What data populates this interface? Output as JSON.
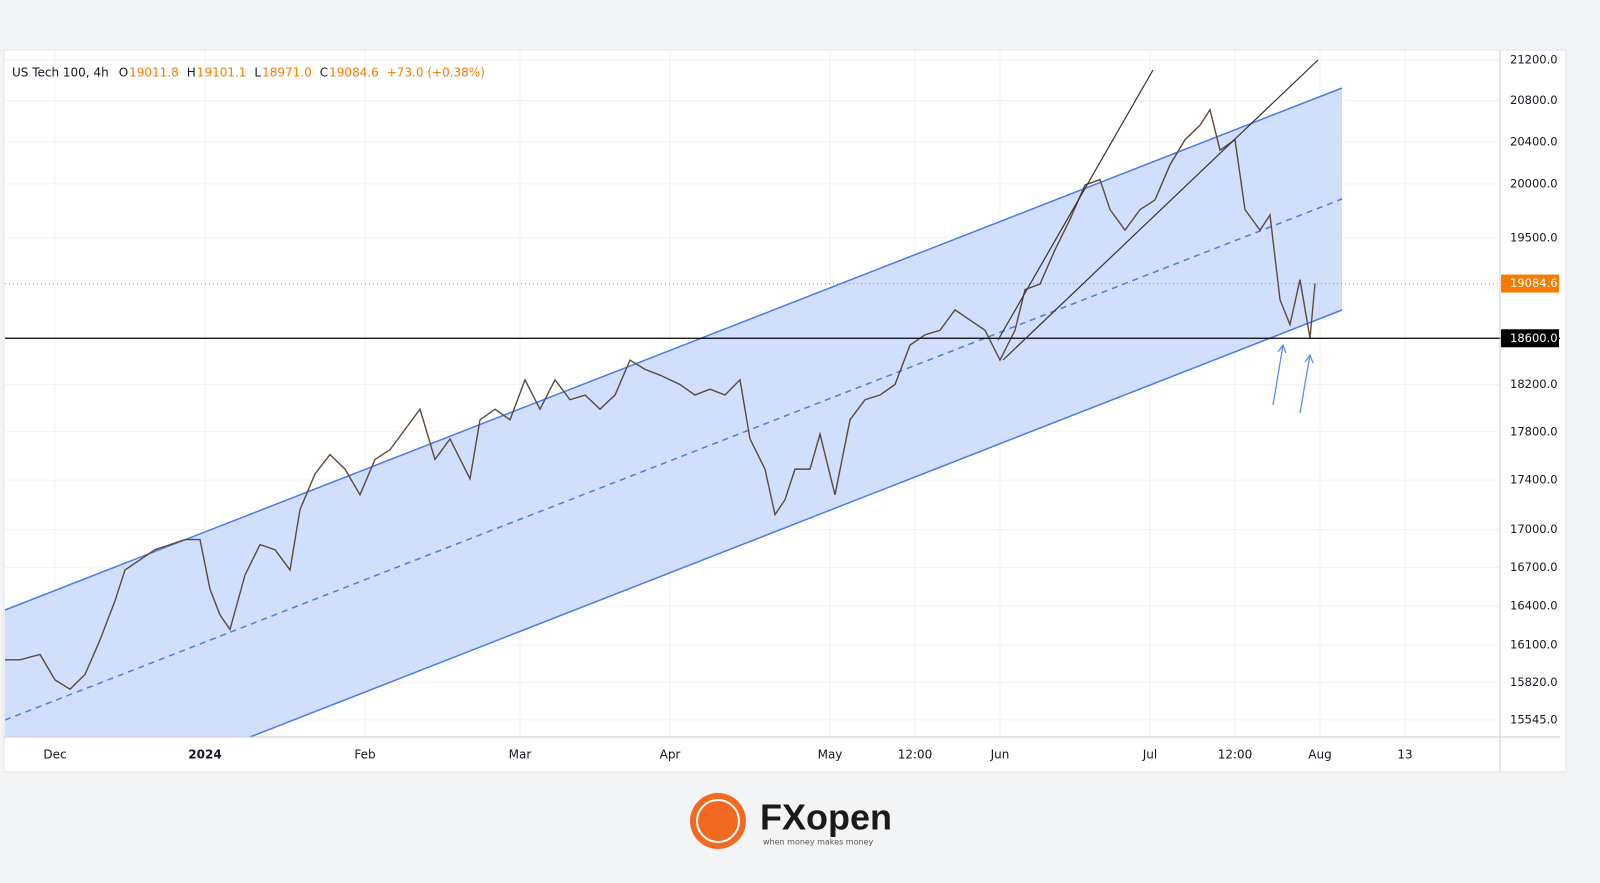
{
  "chart_data": {
    "type": "line",
    "title": "US Tech 100, 4h",
    "ohlc": [
      {
        "key": "O",
        "text": "19011.8"
      },
      {
        "key": "H",
        "text": "19101.1"
      },
      {
        "key": "L",
        "text": "18971.0"
      },
      {
        "key": "C",
        "text": "19084.6"
      }
    ],
    "change": "+73.0 (+0.38%)",
    "log_scale": true,
    "x": [
      0,
      3,
      7,
      10,
      13,
      16,
      19,
      22,
      24,
      27,
      30,
      33,
      36,
      39,
      41,
      43,
      45,
      48,
      51,
      54,
      57,
      59,
      62,
      65,
      68,
      71,
      74,
      77,
      80,
      83,
      86,
      89,
      93,
      95,
      98,
      101,
      104,
      107,
      110,
      113,
      116,
      119,
      122,
      125,
      128,
      131,
      135,
      138,
      141,
      144,
      147,
      149,
      152,
      154,
      156,
      158,
      161,
      163,
      166,
      169,
      172,
      175,
      178,
      181,
      184,
      187,
      190,
      193,
      196,
      199,
      202,
      204,
      207,
      210,
      213,
      216,
      219,
      221,
      224,
      227,
      230,
      233,
      236,
      239,
      241,
      243,
      246,
      248,
      251,
      253,
      255,
      257,
      259,
      261,
      262
    ],
    "series": [
      {
        "name": "US Tech 100",
        "color": "#5d4a3a",
        "values": [
          15990,
          15990,
          16030,
          15840,
          15770,
          15880,
          16140,
          16440,
          16680,
          16760,
          16840,
          16880,
          16920,
          16920,
          16530,
          16330,
          16220,
          16640,
          16880,
          16840,
          16680,
          17160,
          17450,
          17610,
          17490,
          17280,
          17570,
          17650,
          17820,
          17990,
          17570,
          17740,
          17410,
          17900,
          17990,
          17900,
          18240,
          17990,
          18240,
          18070,
          18110,
          17990,
          18110,
          18410,
          18330,
          18280,
          18200,
          18110,
          18160,
          18110,
          18240,
          17740,
          17490,
          17120,
          17240,
          17490,
          17490,
          17780,
          17280,
          17900,
          18070,
          18110,
          18200,
          18540,
          18630,
          18670,
          18850,
          18760,
          18670,
          18410,
          18670,
          19030,
          19080,
          19390,
          19670,
          19990,
          20040,
          19760,
          19570,
          19760,
          19850,
          20180,
          20420,
          20560,
          20710,
          20320,
          20420,
          19760,
          19570,
          19710,
          18940,
          18720,
          19120,
          18600,
          19085
        ]
      }
    ],
    "xlim": [
      0,
      299
    ],
    "xticks": [
      {
        "value": 10,
        "label": "Dec"
      },
      {
        "value": 40,
        "label": "2024"
      },
      {
        "value": 72,
        "label": "Feb"
      },
      {
        "value": 103,
        "label": "Mar"
      },
      {
        "value": 133,
        "label": "Apr"
      },
      {
        "value": 165,
        "label": "May"
      },
      {
        "value": 182,
        "label": "12:00"
      },
      {
        "value": 199,
        "label": "Jun"
      },
      {
        "value": 229,
        "label": "Jul"
      },
      {
        "value": 246,
        "label": "12:00"
      },
      {
        "value": 263,
        "label": "Aug"
      },
      {
        "value": 280,
        "label": "13"
      }
    ],
    "ylim": [
      15420,
      21280
    ],
    "yticks": [
      {
        "value": 21200,
        "label": "21200.0"
      },
      {
        "value": 20800,
        "label": "20800.0"
      },
      {
        "value": 20400,
        "label": "20400.0"
      },
      {
        "value": 20000,
        "label": "20000.0"
      },
      {
        "value": 19500,
        "label": "19500.0"
      },
      {
        "value": 18200,
        "label": "18200.0"
      },
      {
        "value": 17800,
        "label": "17800.0"
      },
      {
        "value": 17400,
        "label": "17400.0"
      },
      {
        "value": 17000,
        "label": "17000.0"
      },
      {
        "value": 16700,
        "label": "16700.0"
      },
      {
        "value": 16400,
        "label": "16400.0"
      },
      {
        "value": 16100,
        "label": "16100.0"
      },
      {
        "value": 15820,
        "label": "15820.0"
      },
      {
        "value": 15545,
        "label": "15545.0"
      }
    ],
    "price_lines": [
      {
        "value": 19084.6,
        "label": "19084.6",
        "color": "#f57c00"
      },
      {
        "value": 18600,
        "label": "18600.0",
        "color": "#000000"
      }
    ],
    "grid": true
  },
  "footer": {
    "brand": "FXopen",
    "tagline": "when money makes money"
  }
}
